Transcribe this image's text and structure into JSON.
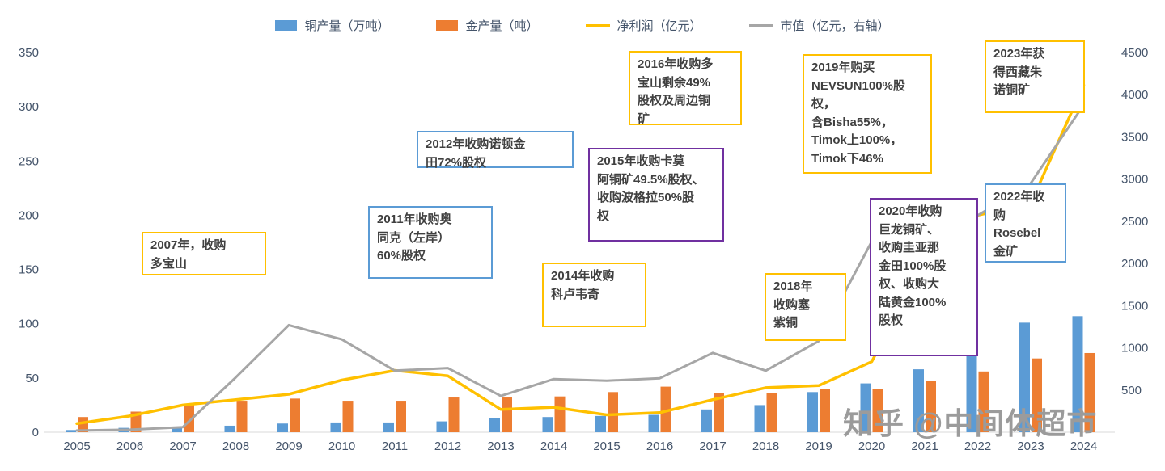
{
  "legend": [
    {
      "label": "铜产量（万吨）",
      "type": "bar",
      "color": "#5B9BD5"
    },
    {
      "label": "金产量（吨）",
      "type": "bar",
      "color": "#ED7D31"
    },
    {
      "label": "净利润（亿元）",
      "type": "line",
      "color": "#FFC000"
    },
    {
      "label": "市值（亿元，右轴）",
      "type": "line",
      "color": "#A6A6A6"
    }
  ],
  "chart_data": {
    "type": "bar",
    "subtype": "combo-bar-line",
    "categories": [
      "2005",
      "2006",
      "2007",
      "2008",
      "2009",
      "2010",
      "2011",
      "2012",
      "2013",
      "2014",
      "2015",
      "2016",
      "2017",
      "2018",
      "2019",
      "2020",
      "2021",
      "2022",
      "2023",
      "2024"
    ],
    "series": [
      {
        "name": "铜产量（万吨）",
        "type": "bar",
        "axis": "left",
        "color": "#5B9BD5",
        "values": [
          2,
          4,
          4,
          6,
          8,
          9,
          9,
          10,
          13,
          14,
          15,
          16,
          21,
          25,
          37,
          45,
          58,
          88,
          101,
          107
        ]
      },
      {
        "name": "金产量（吨）",
        "type": "bar",
        "axis": "left",
        "color": "#ED7D31",
        "values": [
          14,
          19,
          25,
          29,
          31,
          29,
          29,
          32,
          32,
          33,
          37,
          42,
          36,
          36,
          40,
          40,
          47,
          56,
          68,
          73
        ]
      },
      {
        "name": "净利润（亿元）",
        "type": "line",
        "axis": "left",
        "color": "#FFC000",
        "values": [
          8,
          15,
          25,
          30,
          35,
          48,
          57,
          52,
          21,
          23,
          16,
          18,
          30,
          41,
          43,
          65,
          157,
          200,
          211,
          320
        ]
      },
      {
        "name": "市值（亿元，右轴）",
        "type": "line",
        "axis": "right",
        "color": "#A6A6A6",
        "values": [
          20,
          30,
          60,
          650,
          1270,
          1100,
          730,
          760,
          430,
          630,
          610,
          640,
          940,
          730,
          1080,
          2260,
          2300,
          2570,
          2950,
          3880
        ]
      }
    ],
    "left_axis": {
      "min": 0,
      "max": 350,
      "ticks": [
        0,
        50,
        100,
        150,
        200,
        250,
        300,
        350
      ]
    },
    "right_axis": {
      "min": 0,
      "max": 4500,
      "ticks": [
        500,
        1000,
        1500,
        2000,
        2500,
        3000,
        3500,
        4000,
        4500
      ]
    },
    "grid": false,
    "legend_position": "top",
    "title": ""
  },
  "annotations": [
    {
      "text": "2007年，收购\n多宝山",
      "border_color": "#FFC000"
    },
    {
      "text": "2012年收购诺顿金\n田72%股权",
      "border_color": "#5B9BD5"
    },
    {
      "text": "2011年收购奥\n同克（左岸）\n60%股权",
      "border_color": "#5B9BD5"
    },
    {
      "text": "2016年收购多\n宝山剩余49%\n股权及周边铜\n矿",
      "border_color": "#FFC000"
    },
    {
      "text": "2015年收购卡莫\n阿铜矿49.5%股权、\n收购波格拉50%股\n权",
      "border_color": "#7030A0"
    },
    {
      "text": "2014年收购\n科卢韦奇",
      "border_color": "#FFC000"
    },
    {
      "text": "2019年购买\nNEVSUN100%股权，\n含Bisha55%，\nTimok上100%，\nTimok下46%",
      "border_color": "#FFC000"
    },
    {
      "text": "2018年\n收购塞\n紫铜",
      "border_color": "#FFC000"
    },
    {
      "text": "2020年收购\n巨龙铜矿、\n收购圭亚那\n金田100%股\n权、收购大\n陆黄金100%\n股权",
      "border_color": "#7030A0"
    },
    {
      "text": "2022年收\n购\nRosebel\n金矿",
      "border_color": "#5B9BD5"
    },
    {
      "text": "2023年获\n得西藏朱\n诺铜矿",
      "border_color": "#FFC000"
    }
  ],
  "watermark": "知乎 @中间体超市",
  "colors": {
    "axis_text": "#44546A",
    "axis_line": "#D9D9D9",
    "annotation_text": "#404040",
    "watermark_text": "#9B9B9B"
  }
}
